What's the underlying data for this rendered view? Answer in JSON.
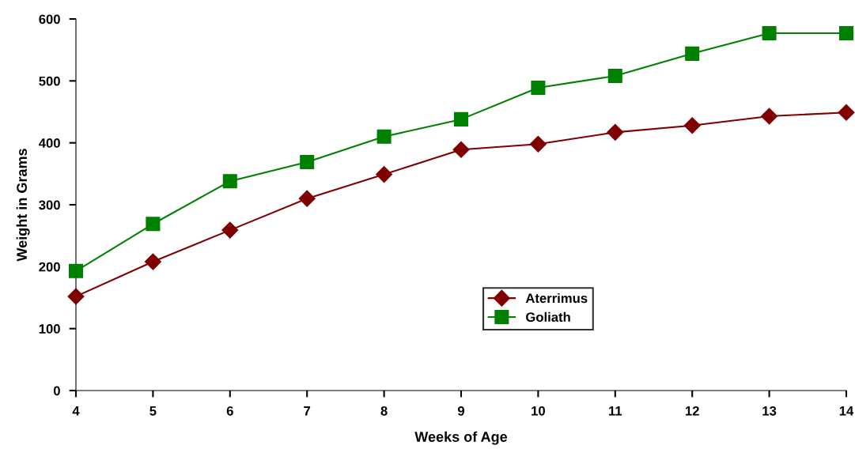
{
  "chart_data": {
    "type": "line",
    "xlabel": "Weeks of Age",
    "ylabel": "Weight in Grams",
    "x": [
      4,
      5,
      6,
      7,
      8,
      9,
      10,
      11,
      12,
      13,
      14
    ],
    "series": [
      {
        "name": "Aterrimus",
        "color": "#800000",
        "marker": "diamond",
        "values": [
          152,
          208,
          259,
          310,
          349,
          389,
          398,
          417,
          428,
          443,
          449
        ]
      },
      {
        "name": "Goliath",
        "color": "#008000",
        "marker": "square",
        "values": [
          193,
          269,
          338,
          369,
          410,
          438,
          489,
          508,
          544,
          577,
          577
        ]
      }
    ],
    "xlim": [
      4,
      14
    ],
    "xticks": [
      4,
      5,
      6,
      7,
      8,
      9,
      10,
      11,
      12,
      13,
      14
    ],
    "ylim": [
      0,
      600
    ],
    "yticks": [
      0,
      100,
      200,
      300,
      400,
      500,
      600
    ],
    "grid": false,
    "legend": "center",
    "line_style": "solid"
  }
}
